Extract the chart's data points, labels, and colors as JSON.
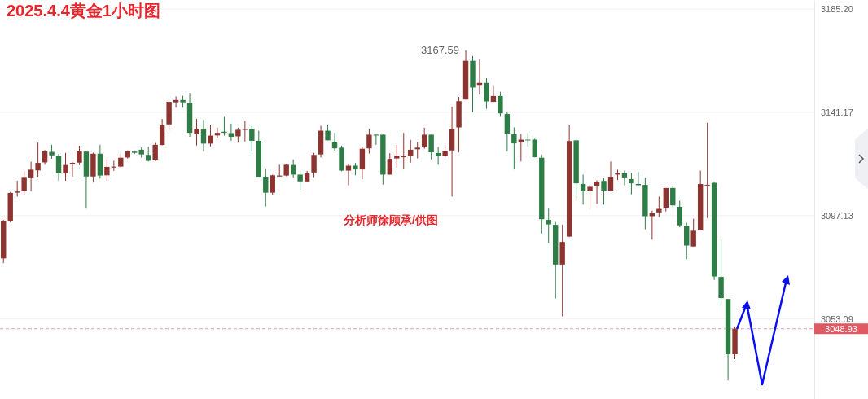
{
  "chart_data": {
    "type": "candlestick",
    "title": "2025.4.4黄金1小时图",
    "categories": [
      null,
      null,
      null,
      null,
      null,
      null,
      null,
      null,
      null,
      null,
      null,
      null,
      null,
      null,
      null,
      null,
      null,
      null,
      null,
      null,
      null,
      null,
      null,
      null,
      null,
      null,
      null,
      null,
      null,
      null,
      null,
      null,
      null,
      null,
      null,
      null,
      null,
      null,
      null,
      null,
      null,
      null,
      null,
      null,
      null,
      null,
      null,
      null,
      null,
      null,
      null,
      null,
      null,
      null,
      null,
      null,
      null,
      null,
      null,
      null,
      null,
      null,
      null,
      null,
      null,
      null,
      null,
      null,
      null,
      null,
      null,
      null,
      null,
      null,
      null,
      null,
      null,
      null,
      null,
      null,
      null,
      null,
      null,
      null,
      null,
      null,
      null,
      null,
      null,
      null,
      null,
      null,
      null,
      null,
      null,
      null,
      null,
      null,
      null,
      null,
      null,
      null,
      null,
      null,
      null,
      null,
      null,
      null,
      null,
      null,
      null,
      null,
      null,
      null,
      null,
      null,
      null,
      null
    ],
    "ohlc": [
      [
        3078.9,
        3095.3,
        3076.9,
        3095.0
      ],
      [
        3094.7,
        3107.2,
        3094.2,
        3106.8
      ],
      [
        3106.9,
        3112.0,
        3105.2,
        3107.4
      ],
      [
        3107.5,
        3116.2,
        3106.1,
        3113.6
      ],
      [
        3113.4,
        3120.1,
        3107.8,
        3116.7
      ],
      [
        3116.4,
        3128.2,
        3113.7,
        3119.6
      ],
      [
        3119.8,
        3125.1,
        3118.8,
        3124.7
      ],
      [
        3124.3,
        3127.3,
        3121.4,
        3122.8
      ],
      [
        3122.6,
        3123.4,
        3112.0,
        3115.1
      ],
      [
        3115.1,
        3123.9,
        3112.0,
        3118.7
      ],
      [
        3119.0,
        3120.0,
        3113.7,
        3119.6
      ],
      [
        3119.7,
        3126.9,
        3118.6,
        3124.7
      ],
      [
        3124.4,
        3124.7,
        3100.1,
        3113.8
      ],
      [
        3113.8,
        3123.9,
        3111.2,
        3123.5
      ],
      [
        3123.5,
        3127.3,
        3112.9,
        3114.2
      ],
      [
        3114.3,
        3121.1,
        3112.0,
        3117.9
      ],
      [
        3117.6,
        3120.5,
        3116.2,
        3118.0
      ],
      [
        3118.0,
        3123.5,
        3117.5,
        3121.8
      ],
      [
        3121.9,
        3124.9,
        3121.5,
        3124.7
      ],
      [
        3124.4,
        3124.9,
        3123.4,
        3123.9
      ],
      [
        3125.2,
        3126.2,
        3121.8,
        3123.2
      ],
      [
        3123.0,
        3126.5,
        3120.2,
        3120.5
      ],
      [
        3120.9,
        3128.1,
        3120.5,
        3127.3
      ],
      [
        3127.2,
        3138.3,
        3127.1,
        3135.7
      ],
      [
        3136.0,
        3146.0,
        3133.3,
        3145.6
      ],
      [
        3145.4,
        3147.9,
        3143.1,
        3146.4
      ],
      [
        3146.4,
        3148.2,
        3143.1,
        3145.4
      ],
      [
        3145.2,
        3149.4,
        3130.7,
        3132.4
      ],
      [
        3132.1,
        3138.3,
        3127.0,
        3134.1
      ],
      [
        3134.1,
        3137.9,
        3124.4,
        3127.8
      ],
      [
        3127.8,
        3135.8,
        3126.6,
        3131.2
      ],
      [
        3131.3,
        3134.6,
        3130.4,
        3132.4
      ],
      [
        3132.9,
        3139.2,
        3131.2,
        3132.4
      ],
      [
        3132.3,
        3136.3,
        3129.0,
        3130.7
      ],
      [
        3130.9,
        3134.6,
        3128.2,
        3133.7
      ],
      [
        3133.8,
        3137.5,
        3128.7,
        3134.0
      ],
      [
        3134.1,
        3135.3,
        3124.4,
        3129.0
      ],
      [
        3129.0,
        3133.3,
        3113.7,
        3113.7
      ],
      [
        3113.7,
        3117.1,
        3101.0,
        3106.9
      ],
      [
        3106.9,
        3114.6,
        3106.1,
        3114.3
      ],
      [
        3113.8,
        3118.8,
        3113.8,
        3114.2
      ],
      [
        3114.2,
        3119.2,
        3113.9,
        3118.8
      ],
      [
        3118.7,
        3121.1,
        3113.4,
        3114.6
      ],
      [
        3114.6,
        3115.2,
        3108.3,
        3111.7
      ],
      [
        3111.7,
        3116.2,
        3111.7,
        3115.4
      ],
      [
        3115.5,
        3123.9,
        3113.5,
        3123.0
      ],
      [
        3123.2,
        3135.4,
        3121.9,
        3133.3
      ],
      [
        3133.3,
        3136.0,
        3129.2,
        3129.2
      ],
      [
        3128.6,
        3132.4,
        3124.8,
        3125.8
      ],
      [
        3126.1,
        3126.9,
        3116.0,
        3116.3
      ],
      [
        3116.3,
        3119.2,
        3110.0,
        3118.4
      ],
      [
        3118.4,
        3119.6,
        3114.3,
        3116.8
      ],
      [
        3116.8,
        3126.4,
        3112.6,
        3125.6
      ],
      [
        3125.8,
        3134.1,
        3123.6,
        3131.6
      ],
      [
        3131.6,
        3131.6,
        3127.3,
        3131.4
      ],
      [
        3131.6,
        3131.6,
        3110.3,
        3114.6
      ],
      [
        3114.6,
        3123.7,
        3114.6,
        3121.3
      ],
      [
        3121.5,
        3127.3,
        3117.6,
        3122.7
      ],
      [
        3122.0,
        3132.4,
        3116.8,
        3122.7
      ],
      [
        3122.4,
        3129.4,
        3119.7,
        3125.2
      ],
      [
        3125.4,
        3128.6,
        3121.5,
        3126.1
      ],
      [
        3126.5,
        3134.6,
        3125.6,
        3131.6
      ],
      [
        3131.6,
        3131.6,
        3121.1,
        3124.1
      ],
      [
        3123.8,
        3126.4,
        3118.8,
        3122.4
      ],
      [
        3122.4,
        3127.3,
        3121.9,
        3124.7
      ],
      [
        3124.9,
        3143.5,
        3105.2,
        3134.1
      ],
      [
        3134.7,
        3147.7,
        3124.1,
        3145.9
      ],
      [
        3146.6,
        3167.59,
        3146.6,
        3163.1
      ],
      [
        3163.1,
        3165.1,
        3141.2,
        3151.7
      ],
      [
        3152.5,
        3163.6,
        3148.7,
        3153.7
      ],
      [
        3153.7,
        3155.7,
        3142.6,
        3145.8
      ],
      [
        3145.6,
        3152.4,
        3145.6,
        3148.1
      ],
      [
        3148.1,
        3149.9,
        3139.2,
        3140.7
      ],
      [
        3140.4,
        3141.5,
        3124.4,
        3132.1
      ],
      [
        3131.9,
        3134.7,
        3116.8,
        3127.9
      ],
      [
        3128.3,
        3131.9,
        3120.2,
        3129.5
      ],
      [
        3129.5,
        3132.4,
        3126.5,
        3129.3
      ],
      [
        3129.5,
        3129.9,
        3122.0,
        3122.0
      ],
      [
        3121.8,
        3123.1,
        3089.5,
        3095.6
      ],
      [
        3095.3,
        3100.1,
        3085.4,
        3093.4
      ],
      [
        3093.2,
        3094.4,
        3061.8,
        3076.3
      ],
      [
        3076.3,
        3093.3,
        3054.2,
        3085.9
      ],
      [
        3088.2,
        3135.8,
        3088.0,
        3128.9
      ],
      [
        3129.2,
        3129.6,
        3104.5,
        3110.9
      ],
      [
        3110.6,
        3114.6,
        3101.8,
        3107.8
      ],
      [
        3107.8,
        3109.9,
        3100.1,
        3109.4
      ],
      [
        3109.9,
        3112.1,
        3102.1,
        3111.6
      ],
      [
        3111.9,
        3113.3,
        3101.8,
        3107.8
      ],
      [
        3107.8,
        3120.2,
        3107.8,
        3113.7
      ],
      [
        3114.6,
        3116.7,
        3112.3,
        3115.3
      ],
      [
        3115.3,
        3116.3,
        3110.0,
        3113.4
      ],
      [
        3112.7,
        3115.3,
        3106.2,
        3110.9
      ],
      [
        3110.6,
        3115.8,
        3109.5,
        3110.1
      ],
      [
        3110.2,
        3113.3,
        3091.3,
        3096.9
      ],
      [
        3096.9,
        3099.2,
        3086.9,
        3098.3
      ],
      [
        3098.5,
        3105.2,
        3096.5,
        3100.0
      ],
      [
        3100.4,
        3108.9,
        3098.9,
        3108.9
      ],
      [
        3108.9,
        3109.8,
        3100.7,
        3101.5
      ],
      [
        3100.9,
        3103.5,
        3092.1,
        3093.0
      ],
      [
        3092.8,
        3094.1,
        3078.6,
        3084.4
      ],
      [
        3084.0,
        3095.8,
        3084.0,
        3090.7
      ],
      [
        3090.9,
        3116.3,
        3090.9,
        3110.6
      ],
      [
        3110.1,
        3136.7,
        3096.1,
        3110.3
      ],
      [
        3111.1,
        3111.5,
        3069.7,
        3071.2
      ],
      [
        3071.0,
        3087.1,
        3059.8,
        3062.0
      ],
      [
        3061.6,
        3061.6,
        3026.9,
        3038.1
      ],
      [
        3038.1,
        3049.9,
        3036.0,
        3048.93
      ],
      null,
      null,
      null,
      null,
      null,
      null,
      null,
      null,
      null,
      null,
      null
    ],
    "ylim": [
      3019.0,
      3189.0
    ],
    "yticks": [
      {
        "value": 3185.2,
        "label": "3185.20"
      },
      3141.17,
      3097.13,
      3053.09
    ],
    "grid": "y",
    "ref_lines": [
      {
        "axis": "y",
        "value": 3048.93,
        "label": "3048.93",
        "color": "#e05a63",
        "line_style": "dashed"
      }
    ],
    "annotations": [
      "3167.59",
      "分析师徐顾承/供图"
    ]
  }
}
